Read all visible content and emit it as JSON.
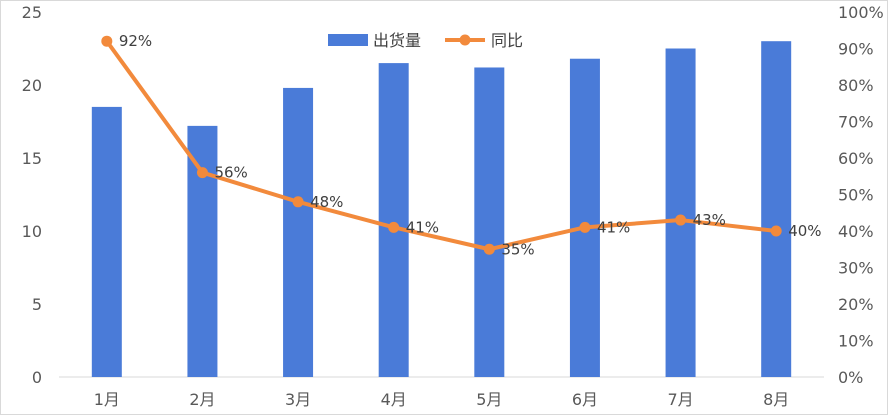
{
  "chart_data": {
    "type": "bar",
    "categories": [
      "1月",
      "2月",
      "3月",
      "4月",
      "5月",
      "6月",
      "7月",
      "8月"
    ],
    "series": [
      {
        "name": "出货量",
        "type": "bar",
        "axis": "left",
        "color": "#4a7bd8",
        "values": [
          18.5,
          17.2,
          19.8,
          21.5,
          21.2,
          21.8,
          22.5,
          23.0
        ]
      },
      {
        "name": "同比",
        "type": "line",
        "axis": "right",
        "color": "#f28a3c",
        "values": [
          92,
          56,
          48,
          41,
          35,
          41,
          43,
          40
        ],
        "data_labels": [
          "92%",
          "56%",
          "48%",
          "41%",
          "35%",
          "41%",
          "43%",
          "40%"
        ]
      }
    ],
    "y_left": {
      "min": 0,
      "max": 25,
      "ticks": [
        "0",
        "5",
        "10",
        "15",
        "20",
        "25"
      ]
    },
    "y_right": {
      "min": 0,
      "max": 100,
      "ticks": [
        "0%",
        "10%",
        "20%",
        "30%",
        "40%",
        "50%",
        "60%",
        "70%",
        "80%",
        "90%",
        "100%"
      ]
    },
    "legend": {
      "position": "top-center",
      "items": [
        "出货量",
        "同比"
      ]
    },
    "grid": false
  }
}
